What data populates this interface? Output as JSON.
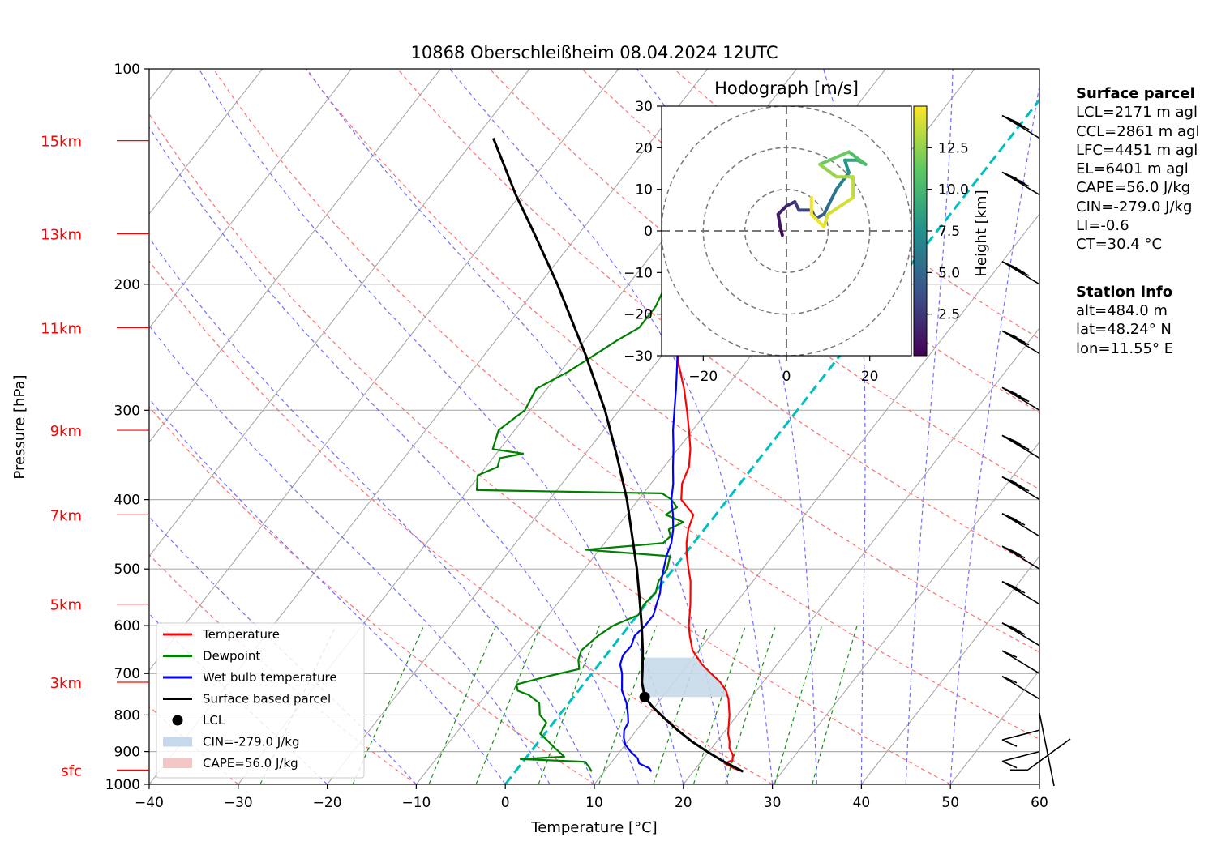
{
  "chart_data": [
    {
      "type": "line",
      "subtype": "skew-T log-P diagram",
      "title": "10868 Oberschleißheim 08.04.2024 12UTC",
      "xlabel": "Temperature [°C]",
      "ylabel": "Pressure [hPa]",
      "xlim": [
        -40,
        60
      ],
      "ylim": [
        1000,
        100
      ],
      "yscale": "log",
      "x_ticks": [
        -40,
        -30,
        -20,
        -10,
        0,
        10,
        20,
        30,
        40,
        50,
        60
      ],
      "x_tick_labels": [
        "−40",
        "−30",
        "−20",
        "−10",
        "0",
        "10",
        "20",
        "30",
        "40",
        "50",
        "60"
      ],
      "y_ticks": [
        1000,
        900,
        800,
        700,
        600,
        500,
        400,
        300,
        200,
        100
      ],
      "height_labels": [
        {
          "label": "sfc",
          "p": 955
        },
        {
          "label": "3km",
          "p": 720
        },
        {
          "label": "5km",
          "p": 560
        },
        {
          "label": "7km",
          "p": 420
        },
        {
          "label": "9km",
          "p": 320
        },
        {
          "label": "11km",
          "p": 230
        },
        {
          "label": "13km",
          "p": 170
        },
        {
          "label": "15km",
          "p": 126
        }
      ],
      "grid": true,
      "legend_position": "lower-left",
      "legend": [
        {
          "label": "Temperature",
          "color": "#ff0000",
          "kind": "line"
        },
        {
          "label": "Dewpoint",
          "color": "#008000",
          "kind": "line"
        },
        {
          "label": "Wet bulb temperature",
          "color": "#0000ff",
          "kind": "line"
        },
        {
          "label": "Surface based parcel",
          "color": "#000000",
          "kind": "line"
        },
        {
          "label": "LCL",
          "color": "#000000",
          "kind": "point"
        },
        {
          "label": "CIN=-279.0 J/kg",
          "color": "#c6d9ea",
          "kind": "patch"
        },
        {
          "label": "CAPE=56.0 J/kg",
          "color": "#f5c6c6",
          "kind": "patch"
        }
      ],
      "series": [
        {
          "name": "Temperature",
          "color": "#ff0000",
          "points": [
            [
              960,
              25.6
            ],
            [
              950,
              24.3
            ],
            [
              935,
              22.8
            ],
            [
              925,
              23.4
            ],
            [
              910,
              23.0
            ],
            [
              890,
              22.0
            ],
            [
              870,
              21.4
            ],
            [
              850,
              20.6
            ],
            [
              800,
              19.1
            ],
            [
              760,
              17.6
            ],
            [
              740,
              16.6
            ],
            [
              720,
              15.2
            ],
            [
              700,
              13.4
            ],
            [
              680,
              11.6
            ],
            [
              650,
              9.3
            ],
            [
              620,
              7.7
            ],
            [
              600,
              6.7
            ],
            [
              560,
              5.0
            ],
            [
              520,
              3.0
            ],
            [
              500,
              1.7
            ],
            [
              480,
              0.4
            ],
            [
              460,
              -0.8
            ],
            [
              440,
              -1.8
            ],
            [
              420,
              -2.5
            ],
            [
              400,
              -5.2
            ],
            [
              380,
              -6.5
            ],
            [
              360,
              -7.2
            ],
            [
              340,
              -8.6
            ],
            [
              320,
              -10.4
            ],
            [
              300,
              -12.4
            ],
            [
              280,
              -14.6
            ],
            [
              260,
              -17.2
            ],
            [
              240,
              -19.7
            ],
            [
              220,
              -22.6
            ],
            [
              200,
              -24.7
            ],
            [
              185,
              -26.2
            ],
            [
              170,
              -27.7
            ],
            [
              160,
              -28.7
            ],
            [
              150,
              -30.5
            ],
            [
              140,
              -32.7
            ],
            [
              130,
              -35.3
            ],
            [
              125,
              -36.6
            ]
          ]
        },
        {
          "name": "Dewpoint",
          "color": "#008000",
          "points": [
            [
              960,
              8.6
            ],
            [
              950,
              8.1
            ],
            [
              930,
              7.0
            ],
            [
              922,
              -0.5
            ],
            [
              915,
              4.2
            ],
            [
              905,
              3.5
            ],
            [
              890,
              2.4
            ],
            [
              870,
              1.0
            ],
            [
              850,
              -0.5
            ],
            [
              820,
              -0.8
            ],
            [
              800,
              -2.2
            ],
            [
              770,
              -3.3
            ],
            [
              750,
              -5.2
            ],
            [
              740,
              -6.8
            ],
            [
              725,
              -7.5
            ],
            [
              705,
              -4.5
            ],
            [
              690,
              -1.8
            ],
            [
              670,
              -2.7
            ],
            [
              650,
              -3.2
            ],
            [
              620,
              -2.6
            ],
            [
              600,
              -1.8
            ],
            [
              580,
              0.1
            ],
            [
              560,
              -0.2
            ],
            [
              540,
              0.1
            ],
            [
              520,
              -0.6
            ],
            [
              500,
              -0.7
            ],
            [
              480,
              -1.5
            ],
            [
              470,
              -11.5
            ],
            [
              460,
              -3.4
            ],
            [
              450,
              -3.2
            ],
            [
              440,
              -4.0
            ],
            [
              430,
              -3.0
            ],
            [
              420,
              -5.6
            ],
            [
              410,
              -5.0
            ],
            [
              400,
              -6.3
            ],
            [
              392,
              -7.9
            ],
            [
              388,
              -29.0
            ],
            [
              370,
              -30.2
            ],
            [
              360,
              -28.7
            ],
            [
              350,
              -29.2
            ],
            [
              345,
              -27.0
            ],
            [
              340,
              -30.8
            ],
            [
              320,
              -31.8
            ],
            [
              300,
              -30.6
            ],
            [
              280,
              -31.2
            ],
            [
              265,
              -29.1
            ],
            [
              250,
              -27.5
            ],
            [
              240,
              -26.4
            ],
            [
              230,
              -25.0
            ],
            [
              215,
              -25.0
            ],
            [
              205,
              -25.5
            ],
            [
              200,
              -24.7
            ],
            [
              195,
              -22.2
            ],
            [
              185,
              -23.0
            ],
            [
              180,
              -26.0
            ],
            [
              170,
              -27.0
            ],
            [
              160,
              -28.7
            ],
            [
              150,
              -29.9
            ],
            [
              140,
              -29.9
            ],
            [
              130,
              -29.2
            ],
            [
              125,
              -28.8
            ]
          ]
        },
        {
          "name": "Wet bulb temperature",
          "color": "#0000ff",
          "points": [
            [
              960,
              15.3
            ],
            [
              950,
              14.8
            ],
            [
              935,
              13.2
            ],
            [
              920,
              12.6
            ],
            [
              900,
              11.2
            ],
            [
              880,
              10.0
            ],
            [
              860,
              9.2
            ],
            [
              840,
              8.6
            ],
            [
              820,
              8.4
            ],
            [
              800,
              7.7
            ],
            [
              770,
              6.5
            ],
            [
              740,
              4.9
            ],
            [
              700,
              3.4
            ],
            [
              680,
              2.4
            ],
            [
              660,
              1.9
            ],
            [
              640,
              2.0
            ],
            [
              620,
              1.5
            ],
            [
              600,
              1.8
            ],
            [
              580,
              1.8
            ],
            [
              560,
              1.2
            ],
            [
              540,
              0.6
            ],
            [
              520,
              -0.3
            ],
            [
              500,
              -1.1
            ],
            [
              480,
              -1.9
            ],
            [
              460,
              -2.5
            ],
            [
              440,
              -3.5
            ],
            [
              420,
              -4.8
            ],
            [
              400,
              -6.3
            ],
            [
              380,
              -7.5
            ],
            [
              360,
              -9.0
            ],
            [
              340,
              -10.5
            ],
            [
              320,
              -12.2
            ],
            [
              300,
              -13.8
            ],
            [
              280,
              -15.5
            ],
            [
              260,
              -17.4
            ],
            [
              240,
              -19.5
            ],
            [
              220,
              -22.0
            ],
            [
              200,
              -24.5
            ],
            [
              185,
              -26.0
            ],
            [
              170,
              -27.9
            ],
            [
              160,
              -29.0
            ],
            [
              150,
              -30.7
            ],
            [
              140,
              -32.8
            ],
            [
              130,
              -35.3
            ],
            [
              125,
              -36.7
            ]
          ]
        },
        {
          "name": "Surface based parcel",
          "color": "#000000",
          "points": [
            [
              960,
              25.6
            ],
            [
              930,
              22.6
            ],
            [
              900,
              19.8
            ],
            [
              870,
              17.1
            ],
            [
              840,
              14.6
            ],
            [
              810,
              12.2
            ],
            [
              780,
              9.8
            ],
            [
              755,
              8.0
            ],
            [
              720,
              6.4
            ],
            [
              690,
              5.3
            ],
            [
              650,
              3.7
            ],
            [
              600,
              1.4
            ],
            [
              550,
              -1.2
            ],
            [
              500,
              -4.1
            ],
            [
              450,
              -7.5
            ],
            [
              400,
              -11.3
            ],
            [
              350,
              -16.0
            ],
            [
              300,
              -21.6
            ],
            [
              250,
              -28.8
            ],
            [
              200,
              -38.0
            ],
            [
              170,
              -45.0
            ],
            [
              150,
              -50.5
            ],
            [
              125,
              -58.0
            ]
          ]
        }
      ],
      "lcl": {
        "p": 755,
        "t": 8.0
      },
      "cin_fill": {
        "label": "CIN=-279.0 J/kg",
        "p_bottom": 755,
        "p_top": 665
      },
      "isotherm_0": {
        "t": 0
      },
      "wind_barbs": [
        {
          "p": 955,
          "kind": "calm-ish"
        },
        {
          "p": 900
        },
        {
          "p": 840
        },
        {
          "p": 760
        },
        {
          "p": 700
        },
        {
          "p": 640
        },
        {
          "p": 560
        },
        {
          "p": 500
        },
        {
          "p": 450
        },
        {
          "p": 400
        },
        {
          "p": 350
        },
        {
          "p": 300
        },
        {
          "p": 250
        },
        {
          "p": 200
        },
        {
          "p": 150
        },
        {
          "p": 125
        }
      ]
    },
    {
      "type": "line",
      "subtype": "hodograph",
      "title": "Hodograph [m/s]",
      "xlim": [
        -30,
        30
      ],
      "ylim": [
        -30,
        30
      ],
      "x_ticks": [
        -20,
        0,
        20
      ],
      "x_tick_labels": [
        "−20",
        "0",
        "20"
      ],
      "y_ticks": [
        30,
        20,
        10,
        0,
        -10,
        -20,
        -30
      ],
      "y_tick_labels": [
        "30",
        "20",
        "10",
        "0",
        "−10",
        "−20",
        "−30"
      ],
      "rings": [
        10,
        20,
        30
      ],
      "colorbar": {
        "label": "Height [km]",
        "ticks": [
          "2.5",
          "5.0",
          "7.5",
          "10.0",
          "12.5"
        ],
        "range": [
          0,
          15
        ]
      },
      "points": [
        {
          "u": -1,
          "v": -1,
          "h": 0.5
        },
        {
          "u": -1.5,
          "v": 1,
          "h": 1.0
        },
        {
          "u": -2,
          "v": 4,
          "h": 1.5
        },
        {
          "u": 0,
          "v": 6,
          "h": 2.0
        },
        {
          "u": 2,
          "v": 7,
          "h": 2.5
        },
        {
          "u": 3,
          "v": 5,
          "h": 3.0
        },
        {
          "u": 6,
          "v": 5,
          "h": 3.5
        },
        {
          "u": 7,
          "v": 3,
          "h": 4.0
        },
        {
          "u": 9,
          "v": 4,
          "h": 5.0
        },
        {
          "u": 10,
          "v": 6,
          "h": 5.5
        },
        {
          "u": 12,
          "v": 10,
          "h": 6.5
        },
        {
          "u": 15,
          "v": 14,
          "h": 7.5
        },
        {
          "u": 14,
          "v": 17,
          "h": 8.5
        },
        {
          "u": 17,
          "v": 17,
          "h": 9.5
        },
        {
          "u": 19,
          "v": 16,
          "h": 10.5
        },
        {
          "u": 15,
          "v": 19,
          "h": 11.5
        },
        {
          "u": 8,
          "v": 16,
          "h": 12.5
        },
        {
          "u": 12,
          "v": 13,
          "h": 13.0
        },
        {
          "u": 16,
          "v": 13,
          "h": 13.5
        },
        {
          "u": 16,
          "v": 8,
          "h": 14.0
        },
        {
          "u": 10,
          "v": 4,
          "h": 14.3
        },
        {
          "u": 9,
          "v": 1,
          "h": 14.6
        },
        {
          "u": 6,
          "v": 4,
          "h": 14.8
        },
        {
          "u": 6,
          "v": 8,
          "h": 15.0
        }
      ]
    }
  ],
  "side_panel": {
    "surface_heading": "Surface parcel",
    "surface_lines": [
      "LCL=2171 m agl",
      "CCL=2861 m agl",
      "LFC=4451 m agl",
      "EL=6401 m agl",
      "CAPE=56.0 J/kg",
      "CIN=-279.0 J/kg",
      "LI=-0.6",
      "CT=30.4 °C"
    ],
    "station_heading": "Station info",
    "station_lines": [
      "alt=484.0 m",
      "lat=48.24° N",
      "lon=11.55° E"
    ]
  },
  "colors": {
    "dry_adiabat": "#ff6f6f",
    "moist_adiabat": "#6f6fff",
    "mixing_ratio": "#1a8c1a",
    "isotherm": "#9a9a9a",
    "zero_isotherm": "#00bfbf",
    "height_label": "#ff0000"
  }
}
